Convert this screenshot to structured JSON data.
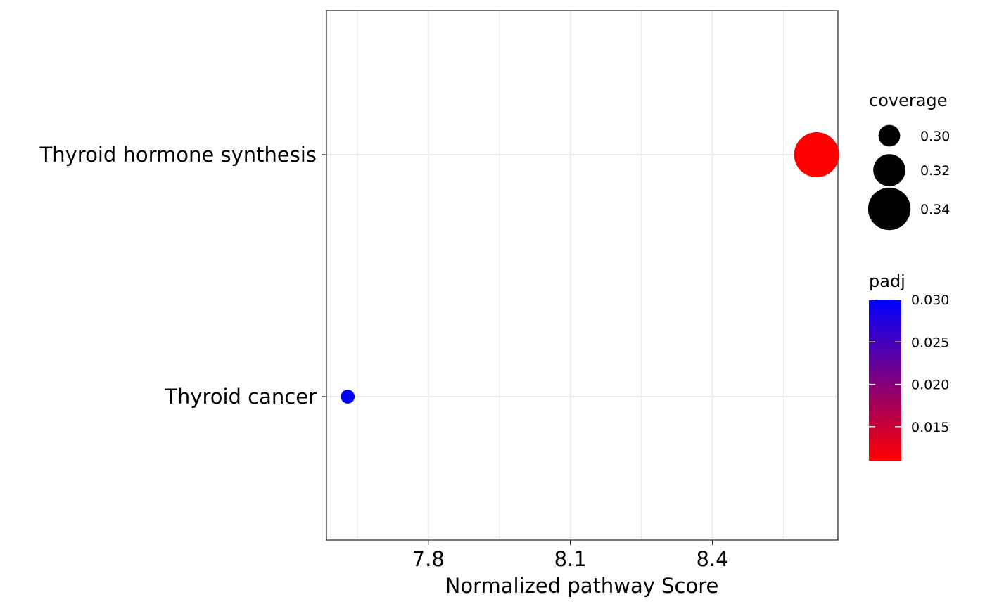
{
  "chart_data": {
    "type": "scatter",
    "title": "",
    "xlabel": "Normalized pathway Score",
    "ylabel": "",
    "xlim": [
      7.585,
      8.665
    ],
    "x_ticks": [
      7.8,
      8.1,
      8.4
    ],
    "x_tick_labels": [
      "7.8",
      "8.1",
      "8.4"
    ],
    "categories": [
      "Thyroid hormone synthesis",
      "Thyroid cancer"
    ],
    "points": [
      {
        "category": "Thyroid hormone synthesis",
        "x": 8.62,
        "coverage": 0.345,
        "padj": 0.011
      },
      {
        "category": "Thyroid cancer",
        "x": 7.63,
        "coverage": 0.285,
        "padj": 0.03
      }
    ],
    "grid": true,
    "legend_placement": "right",
    "size_legend": {
      "title": "coverage",
      "entries": [
        {
          "label": "0.30",
          "value": 0.3
        },
        {
          "label": "0.32",
          "value": 0.32
        },
        {
          "label": "0.34",
          "value": 0.34
        }
      ]
    },
    "color_legend": {
      "title": "padj",
      "low_color": "#ff0000",
      "high_color": "#0000ff",
      "range": [
        0.011,
        0.03
      ],
      "ticks": [
        {
          "label": "0.030",
          "value": 0.03
        },
        {
          "label": "0.025",
          "value": 0.025
        },
        {
          "label": "0.020",
          "value": 0.02
        },
        {
          "label": "0.015",
          "value": 0.015
        }
      ]
    }
  }
}
